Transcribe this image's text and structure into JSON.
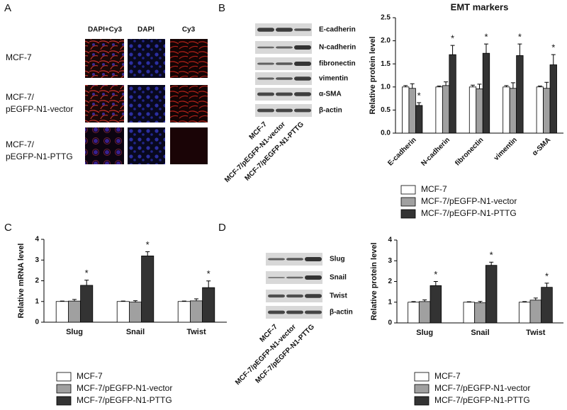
{
  "panel_labels": [
    "A",
    "B",
    "C",
    "D"
  ],
  "panel_a": {
    "columns": [
      "DAPI+Cy3",
      "DAPI",
      "Cy3"
    ],
    "rows": [
      [
        "MCF-7"
      ],
      [
        "MCF-7/",
        "pEGFP-N1-vector"
      ],
      [
        "MCF-7/",
        "pEGFP-N1-PTTG"
      ]
    ]
  },
  "blot_b": {
    "bands": [
      "E-cadherin",
      "N-cadherin",
      "fibronectin",
      "vimentin",
      "α-SMA",
      "β-actin"
    ],
    "lanes": [
      "MCF-7",
      "MCF-7/pEGFP-N1-vector",
      "MCF-7/pEGFP-N1-PTTG"
    ]
  },
  "blot_d": {
    "bands": [
      "Slug",
      "Snail",
      "Twist",
      "β-actin"
    ],
    "lanes": [
      "MCF-7",
      "MCF-7/pEGFP-N1-vector",
      "MCF-7/pEGFP-N1-PTTG"
    ]
  },
  "chart_data": [
    {
      "type": "bar",
      "title": "EMT markers",
      "y_label": "Relative protein level",
      "legend": "bottom",
      "categories": [
        "E-cadherin",
        "N-cadherin",
        "fibronectin",
        "vimentin",
        "α-SMA"
      ],
      "ylim": [
        0,
        2.5
      ],
      "yticks": [
        {
          "value": 0,
          "label": "0.0"
        },
        0.5,
        {
          "value": 1,
          "label": "1.0"
        },
        1.5,
        {
          "value": 2,
          "label": "2.0"
        },
        2.5
      ],
      "series": [
        {
          "name": "MCF-7",
          "color": "#ffffff",
          "values": [
            1.0,
            1.0,
            1.0,
            1.0,
            1.0
          ],
          "errors": [
            0.03,
            0.02,
            0.04,
            0.03,
            0.02
          ]
        },
        {
          "name": "MCF-7/pEGFP-N1-vector",
          "color": "#a0a0a0",
          "values": [
            0.97,
            1.03,
            0.96,
            0.97,
            0.97
          ],
          "errors": [
            0.1,
            0.08,
            0.1,
            0.12,
            0.13
          ]
        },
        {
          "name": "MCF-7/pEGFP-N1-PTTG",
          "color": "#333333",
          "values": [
            0.6,
            1.7,
            1.73,
            1.68,
            1.48
          ],
          "errors": [
            0.06,
            0.2,
            0.2,
            0.25,
            0.22
          ],
          "markers": [
            "*",
            "*",
            "*",
            "*",
            "*"
          ]
        }
      ]
    },
    {
      "type": "bar",
      "y_label": "Relative mRNA level",
      "legend": "bottom",
      "categories": [
        "Slug",
        "Snail",
        "Twist"
      ],
      "ylim": [
        0,
        4
      ],
      "yticks": [
        0,
        1,
        2,
        3,
        4
      ],
      "series": [
        {
          "name": "MCF-7",
          "color": "#ffffff",
          "values": [
            1,
            1,
            1
          ],
          "errors": [
            0.02,
            0.02,
            0.02
          ]
        },
        {
          "name": "MCF-7/pEGFP-N1-vector",
          "color": "#a0a0a0",
          "values": [
            1.02,
            0.97,
            1.03
          ],
          "errors": [
            0.08,
            0.07,
            0.1
          ]
        },
        {
          "name": "MCF-7/pEGFP-N1-PTTG",
          "color": "#333333",
          "values": [
            1.78,
            3.2,
            1.67
          ],
          "errors": [
            0.25,
            0.2,
            0.32
          ],
          "markers": [
            "*",
            "*",
            "*"
          ]
        }
      ]
    },
    {
      "type": "bar",
      "y_label": "Relative protein level",
      "legend": "bottom",
      "categories": [
        "Slug",
        "Snail",
        "Twist"
      ],
      "ylim": [
        0,
        4
      ],
      "yticks": [
        0,
        1,
        2,
        3,
        4
      ],
      "series": [
        {
          "name": "MCF-7",
          "color": "#ffffff",
          "values": [
            1,
            1,
            1
          ],
          "errors": [
            0.03,
            0.02,
            0.03
          ]
        },
        {
          "name": "MCF-7/pEGFP-N1-vector",
          "color": "#a0a0a0",
          "values": [
            1.03,
            0.97,
            1.1
          ],
          "errors": [
            0.08,
            0.07,
            0.1
          ]
        },
        {
          "name": "MCF-7/pEGFP-N1-PTTG",
          "color": "#333333",
          "values": [
            1.8,
            2.78,
            1.72
          ],
          "errors": [
            0.2,
            0.15,
            0.2
          ],
          "markers": [
            "*",
            "*",
            "*"
          ]
        }
      ]
    }
  ]
}
